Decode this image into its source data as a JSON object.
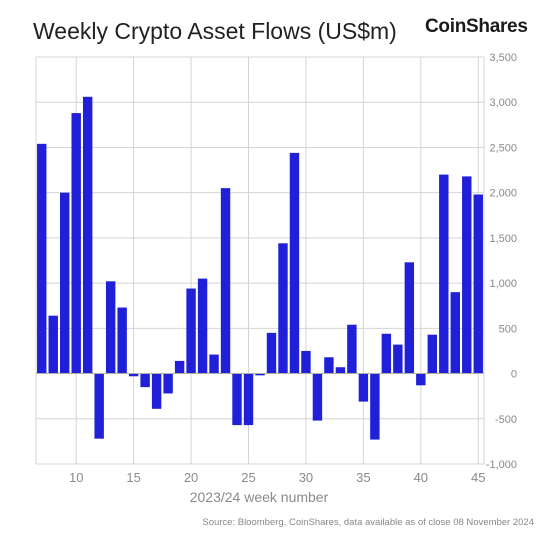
{
  "header": {
    "title": "Weekly Crypto Asset Flows (US$m)",
    "brand": "CoinShares"
  },
  "footer": {
    "source": "Source: Bloomberg, CoinShares, data available as of close 08 November 2024"
  },
  "colors": {
    "bar": "#2020d8",
    "grid": "#d4d4d4",
    "axis_text": "#8a8a8a"
  },
  "chart_data": {
    "type": "bar",
    "title": "Weekly Crypto Asset Flows (US$m)",
    "xlabel": "2023/24 week number",
    "ylabel": "",
    "x": [
      7,
      8,
      9,
      10,
      11,
      12,
      13,
      14,
      15,
      16,
      17,
      18,
      19,
      20,
      21,
      22,
      23,
      24,
      25,
      26,
      27,
      28,
      29,
      30,
      31,
      32,
      33,
      34,
      35,
      36,
      37,
      38,
      39,
      40,
      41,
      42,
      43,
      44,
      45
    ],
    "values": [
      2540,
      640,
      2000,
      2880,
      3060,
      -720,
      1020,
      730,
      -30,
      -150,
      -390,
      -220,
      140,
      940,
      1050,
      210,
      2050,
      -570,
      -570,
      -20,
      450,
      1440,
      2440,
      250,
      -520,
      180,
      70,
      540,
      -310,
      -730,
      440,
      320,
      1230,
      -130,
      430,
      2200,
      900,
      2180,
      1980
    ],
    "xticks": [
      "10",
      "15",
      "20",
      "25",
      "30",
      "35",
      "40",
      "45"
    ],
    "yticks": [
      "3,500",
      "3,000",
      "2,500",
      "2,000",
      "1,500",
      "1,000",
      "500",
      "0",
      "-500",
      "-1,000"
    ],
    "ylim": [
      -1000,
      3500
    ],
    "grid": true,
    "legend": "none"
  }
}
